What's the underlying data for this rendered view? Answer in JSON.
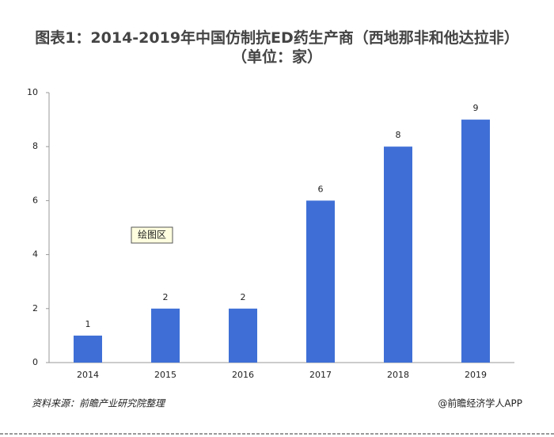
{
  "chart_data": {
    "type": "bar",
    "title": "图表1：2014-2019年中国仿制抗ED药生产商（西地那非和他达拉非）（单位：家）",
    "categories": [
      "2014",
      "2015",
      "2016",
      "2017",
      "2018",
      "2019"
    ],
    "values": [
      1,
      2,
      2,
      6,
      8,
      9
    ],
    "color": "#3f6fd6",
    "ylim": [
      0,
      10
    ],
    "yticks": [
      0,
      2,
      4,
      6,
      8,
      10
    ],
    "grid": false,
    "annotation": "绘图区",
    "source": "资料来源：前瞻产业研究院整理",
    "credit": "@前瞻经济学人APP"
  }
}
